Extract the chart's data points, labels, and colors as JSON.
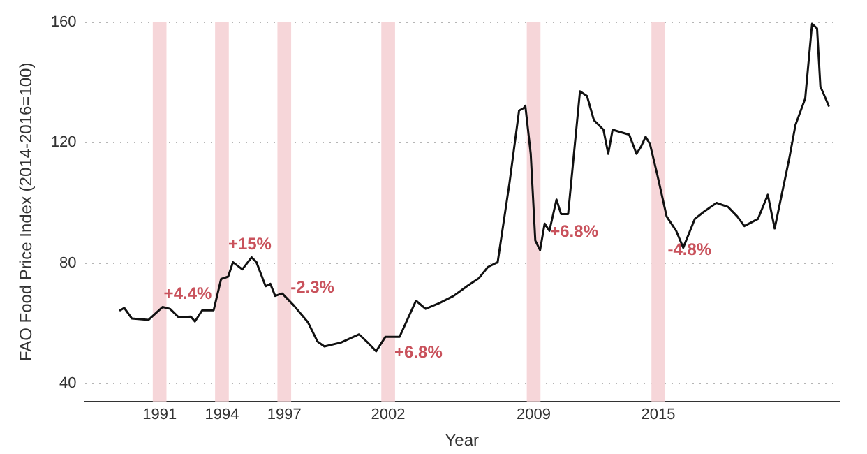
{
  "chart_data": {
    "type": "line",
    "xlabel": "Year",
    "ylabel": "FAO Food Price Index (2014-2016=100)",
    "x": [
      1989.1,
      1989.3,
      1989.66,
      1990.46,
      1991.14,
      1991.5,
      1991.93,
      1992.5,
      1992.7,
      1993.05,
      1993.6,
      1993.96,
      1994.3,
      1994.53,
      1994.98,
      1995.43,
      1995.66,
      1996.1,
      1996.33,
      1996.56,
      1996.9,
      1997.46,
      1998.14,
      1998.6,
      1998.93,
      1999.73,
      2000.6,
      2000.97,
      2001.42,
      2001.87,
      2002.55,
      2003.34,
      2003.8,
      2004.47,
      2005.15,
      2005.83,
      2006.37,
      2006.8,
      2007.27,
      2007.84,
      2008.3,
      2008.52,
      2008.6,
      2008.86,
      2009.08,
      2009.31,
      2009.53,
      2009.76,
      2010.1,
      2010.32,
      2010.66,
      2011.23,
      2011.57,
      2011.9,
      2012.36,
      2012.59,
      2012.8,
      2013.6,
      2013.95,
      2014.17,
      2014.39,
      2014.6,
      2014.96,
      2015.4,
      2015.86,
      2016.2,
      2016.76,
      2017.2,
      2017.8,
      2018.35,
      2018.8,
      2019.14,
      2019.8,
      2020.27,
      2020.6,
      2021.3,
      2021.6,
      2022.07,
      2022.4,
      2022.64,
      2022.8,
      2023.2
    ],
    "series": [
      {
        "color": "#111111",
        "values": [
          64.3,
          65.1,
          61.6,
          61.1,
          65.4,
          64.8,
          61.9,
          62.2,
          60.6,
          64.3,
          64.3,
          74.7,
          75.5,
          80.3,
          77.9,
          81.9,
          80.3,
          72.3,
          73.1,
          69.1,
          69.9,
          65.9,
          60.3,
          53.9,
          52.3,
          53.6,
          56.3,
          53.9,
          50.7,
          55.5,
          55.5,
          67.5,
          64.8,
          66.7,
          69.1,
          72.5,
          75,
          78.7,
          80.3,
          106.7,
          130.7,
          131.5,
          132.3,
          116.3,
          87.5,
          84.3,
          93.1,
          90.7,
          101.1,
          96.3,
          96.3,
          137.1,
          135.5,
          127.5,
          124.3,
          116.3,
          124.3,
          122.7,
          116.3,
          118.7,
          122,
          119.5,
          109.1,
          95.5,
          90.7,
          85.1,
          94.7,
          97.1,
          100,
          98.7,
          95.5,
          92.3,
          94.7,
          102.7,
          91.5,
          114.7,
          125.9,
          134.7,
          159.5,
          158,
          138.7,
          132.3
        ]
      }
    ],
    "xlim": [
      1987.4,
      2023.7
    ],
    "ylim": [
      34,
      160
    ],
    "xticks": [
      1991,
      1994,
      1997,
      2002,
      2009,
      2015
    ],
    "yticks": [
      40,
      80,
      120,
      160
    ],
    "grid": "y",
    "legend": false,
    "marker": "none",
    "line_style": "solid",
    "bands": [
      {
        "axis": "x",
        "from": 1990.67,
        "to": 1991.33,
        "color": "#f6d6d9"
      },
      {
        "axis": "x",
        "from": 1993.67,
        "to": 1994.33,
        "color": "#f6d6d9"
      },
      {
        "axis": "x",
        "from": 1996.67,
        "to": 1997.33,
        "color": "#f6d6d9"
      },
      {
        "axis": "x",
        "from": 2001.67,
        "to": 2002.33,
        "color": "#f6d6d9"
      },
      {
        "axis": "x",
        "from": 2008.67,
        "to": 2009.33,
        "color": "#f6d6d9"
      },
      {
        "axis": "x",
        "from": 2014.67,
        "to": 2015.33,
        "color": "#f6d6d9"
      }
    ],
    "annotations": [
      {
        "text": "+4.4%",
        "x": 1991.2,
        "y": 69.7
      },
      {
        "text": "+15%",
        "x": 1994.3,
        "y": 86
      },
      {
        "text": "-2.3%",
        "x": 1997.3,
        "y": 71.7
      },
      {
        "text": "+6.8%",
        "x": 2002.3,
        "y": 50
      },
      {
        "text": "+6.8%",
        "x": 2009.8,
        "y": 90.3
      },
      {
        "text": "-4.8%",
        "x": 2015.45,
        "y": 84.2
      }
    ]
  }
}
